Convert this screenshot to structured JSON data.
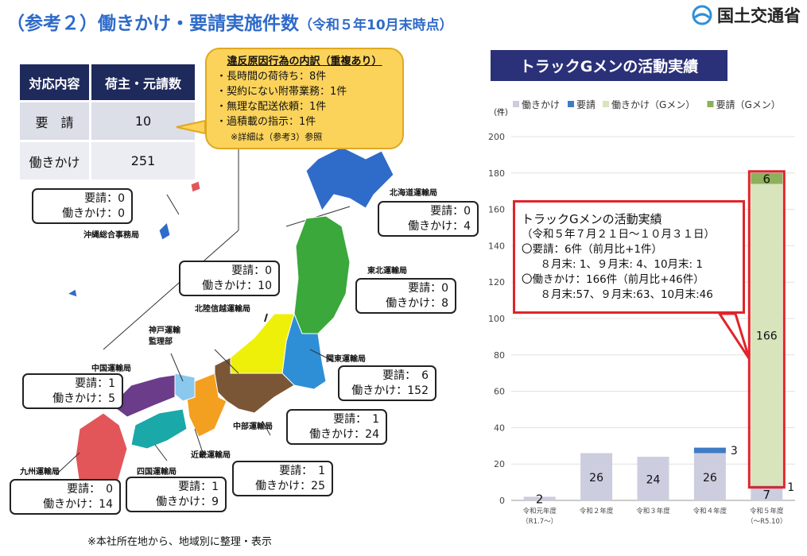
{
  "title": {
    "main": "（参考２）働きかけ・要請実施件数",
    "sub": "（令和５年10月末時点）"
  },
  "logo": {
    "text": "国土交通省"
  },
  "summary_table": {
    "headers": [
      "対応内容",
      "荷主・元請数"
    ],
    "rows": [
      [
        "要　請",
        "10"
      ],
      [
        "働きかけ",
        "251"
      ]
    ]
  },
  "callout": {
    "heading": "違反原因行為の内訳（重複あり）",
    "items": [
      "・長時間の荷待ち：8件",
      "・契約にない附帯業務：1件",
      "・無理な配送依頼：1件",
      "・過積載の指示：1件"
    ],
    "note": "※詳細は（参考3）参照"
  },
  "regions": [
    {
      "name": "沖縄総合事務局",
      "request": "要請：0",
      "action": "働きかけ：0"
    },
    {
      "name": "北海道運輸局",
      "request": "要請：0",
      "action": "働きかけ：4"
    },
    {
      "name": "東北運輸局",
      "request": "要請：0",
      "action": "働きかけ：8"
    },
    {
      "name": "北陸信越運輸局",
      "request": "要請：0",
      "action": "働きかけ：10"
    },
    {
      "name": "関東運輸局",
      "request": "要請：　6",
      "action": "働きかけ：152"
    },
    {
      "name": "中部運輸局",
      "request": "要請：　1",
      "action": "働きかけ：24"
    },
    {
      "name": "近畿運輸局",
      "request": "要請：　1",
      "action": "働きかけ：25"
    },
    {
      "name": "四国運輸局",
      "request": "要請：1",
      "action": "働きかけ：9"
    },
    {
      "name": "九州運輸局",
      "request": "要請：　0",
      "action": "働きかけ：14"
    },
    {
      "name": "中国運輸局",
      "request": "要請：1",
      "action": "働きかけ：5"
    }
  ],
  "kobe_label": [
    "神戸運輸",
    "監理部"
  ],
  "chart_title": "トラックGメンの活動実績",
  "gmen_box": {
    "lines": [
      "トラックGメンの活動実績",
      "（令和５年７月２１日～１０月３１日）",
      "〇要請：6件（前月比+1件）",
      "　８月末: 1、９月末: 4、10月末: 1",
      "〇働きかけ：166件（前月比+46件）",
      "　８月末:57、９月末:63、10月末:46"
    ]
  },
  "footer": "※本社所在地から、地域別に整理・表示",
  "chart_data": {
    "type": "bar",
    "stacked": true,
    "ylabel": "（件）",
    "ylim": [
      0,
      200
    ],
    "yticks": [
      0,
      20,
      40,
      60,
      80,
      100,
      120,
      140,
      160,
      180,
      200
    ],
    "grid": true,
    "legend": "top",
    "categories": [
      [
        "令和元年度",
        "（R1.7～）"
      ],
      [
        "令和２年度",
        ""
      ],
      [
        "令和３年度",
        ""
      ],
      [
        "令和４年度",
        ""
      ],
      [
        "令和５年度",
        "（～R5.10）"
      ]
    ],
    "series": [
      {
        "name": "働きかけ",
        "color": "#cdcde0",
        "values": [
          2,
          26,
          24,
          26,
          7
        ]
      },
      {
        "name": "要請",
        "color": "#3d7cc4",
        "values": [
          0,
          0,
          0,
          3,
          1
        ]
      },
      {
        "name": "働きかけ（Gメン）",
        "color": "#d8e4bc",
        "values": [
          0,
          0,
          0,
          0,
          166
        ]
      },
      {
        "name": "要請（Gメン）",
        "color": "#8db05a",
        "values": [
          0,
          0,
          0,
          0,
          6
        ]
      }
    ]
  }
}
